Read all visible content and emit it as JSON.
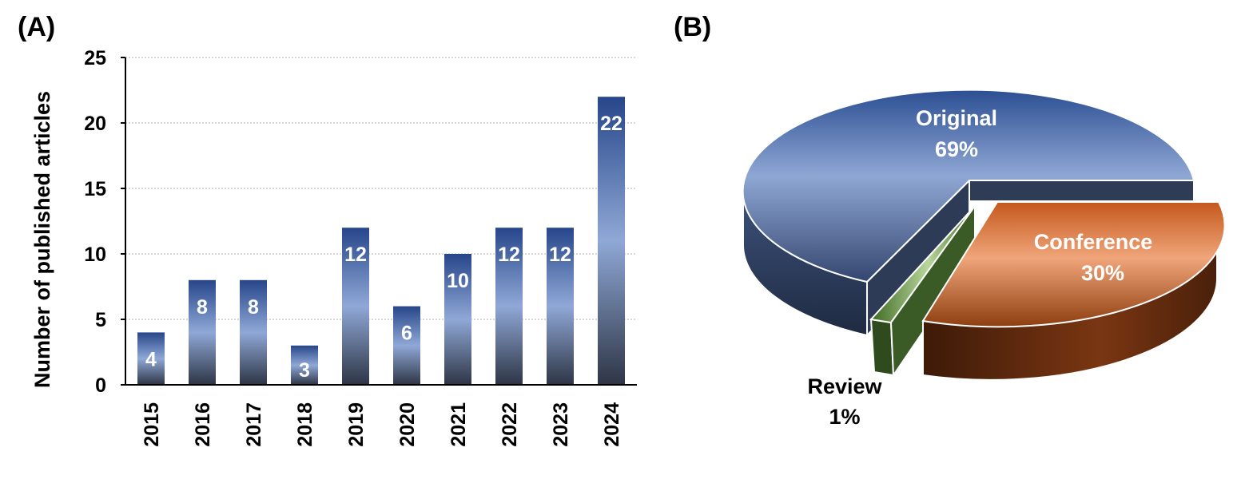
{
  "panels": {
    "a_label": "(A)",
    "b_label": "(B)"
  },
  "chart_data": [
    {
      "type": "bar",
      "ylabel": "Number of published articles",
      "categories": [
        "2015",
        "2016",
        "2017",
        "2018",
        "2019",
        "2020",
        "2021",
        "2022",
        "2023",
        "2024"
      ],
      "values": [
        4,
        8,
        8,
        3,
        12,
        6,
        10,
        12,
        12,
        22
      ],
      "data_labels": [
        "4",
        "8",
        "8",
        "3",
        "12",
        "6",
        "10",
        "12",
        "12",
        "22"
      ],
      "ylim": [
        0,
        25
      ],
      "yticks": [
        "0",
        "5",
        "10",
        "15",
        "20",
        "25"
      ],
      "grid": true,
      "colors": {
        "bar_top": "#27468a",
        "bar_mid": "#8fa8d6",
        "bar_bottom": "#2e3545"
      }
    },
    {
      "type": "pie",
      "slices": [
        {
          "label": "Original",
          "percent_label": "69%",
          "value": 69,
          "color": "#4a6eb0",
          "text_color": "#ffffff"
        },
        {
          "label": "Conference",
          "percent_label": "30%",
          "value": 30,
          "color": "#e07b3c",
          "text_color": "#ffffff"
        },
        {
          "label": "Review",
          "percent_label": "1%",
          "value": 1,
          "color": "#4f7a2f",
          "text_color": "#000000"
        }
      ]
    }
  ]
}
